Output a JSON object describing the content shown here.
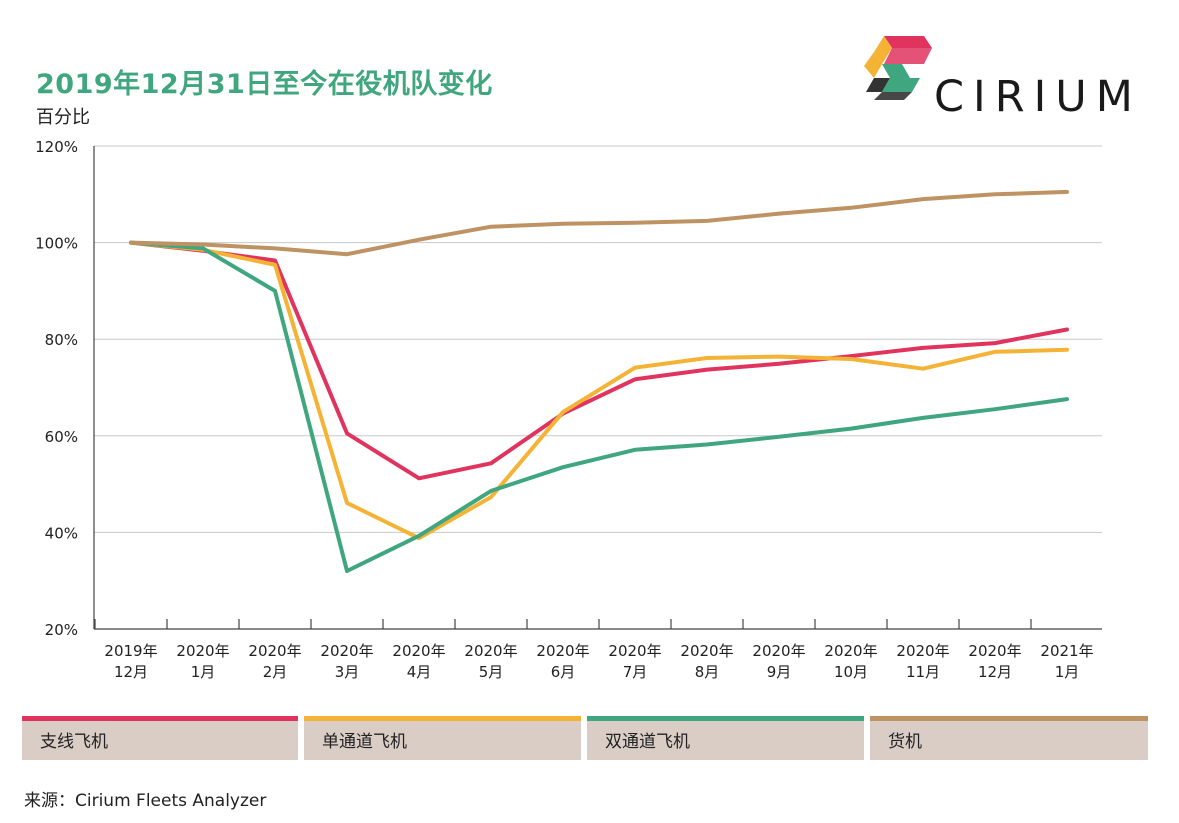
{
  "title": "2019年12月31日至今在役机队变化",
  "subtitle": "百分比",
  "logo": {
    "text": "CIRIUM"
  },
  "source": "来源：Cirium Fleets Analyzer",
  "chart_data": {
    "type": "line",
    "title": "2019年12月31日至今在役机队变化",
    "ylabel": "百分比",
    "ylim": [
      20,
      120
    ],
    "yticks": [
      "20%",
      "40%",
      "60%",
      "80%",
      "100%",
      "120%"
    ],
    "ytick_values": [
      20,
      40,
      60,
      80,
      100,
      120
    ],
    "grid": true,
    "categories": [
      [
        "2019年",
        "12月"
      ],
      [
        "2020年",
        "1月"
      ],
      [
        "2020年",
        "2月"
      ],
      [
        "2020年",
        "3月"
      ],
      [
        "2020年",
        "4月"
      ],
      [
        "2020年",
        "5月"
      ],
      [
        "2020年",
        "6月"
      ],
      [
        "2020年",
        "7月"
      ],
      [
        "2020年",
        "8月"
      ],
      [
        "2020年",
        "9月"
      ],
      [
        "2020年",
        "10月"
      ],
      [
        "2020年",
        "11月"
      ],
      [
        "2020年",
        "12月"
      ],
      [
        "2021年",
        "1月"
      ]
    ],
    "legend_position": "bottom",
    "series": [
      {
        "name": "支线飞机",
        "color": "#e0345f",
        "values": [
          100,
          98.3,
          96.3,
          60.5,
          51.2,
          54.3,
          64.6,
          71.7,
          73.7,
          74.9,
          76.5,
          78.2,
          79.2,
          82
        ]
      },
      {
        "name": "单通道飞机",
        "color": "#f5b335",
        "values": [
          100,
          98.5,
          95.4,
          46.1,
          38.8,
          47.3,
          64.9,
          74.1,
          76.1,
          76.4,
          75.9,
          73.9,
          77.4,
          77.8
        ]
      },
      {
        "name": "双通道飞机",
        "color": "#3fa67f",
        "values": [
          100,
          98.8,
          90.0,
          32.0,
          39.3,
          48.6,
          53.5,
          57.1,
          58.2,
          59.8,
          61.5,
          63.7,
          65.5,
          67.6
        ]
      },
      {
        "name": "货机",
        "color": "#bf9264",
        "values": [
          100,
          99.6,
          98.8,
          97.6,
          100.6,
          103.3,
          103.9,
          104.1,
          104.5,
          106.0,
          107.2,
          109.0,
          110.0,
          110.5
        ]
      }
    ]
  }
}
